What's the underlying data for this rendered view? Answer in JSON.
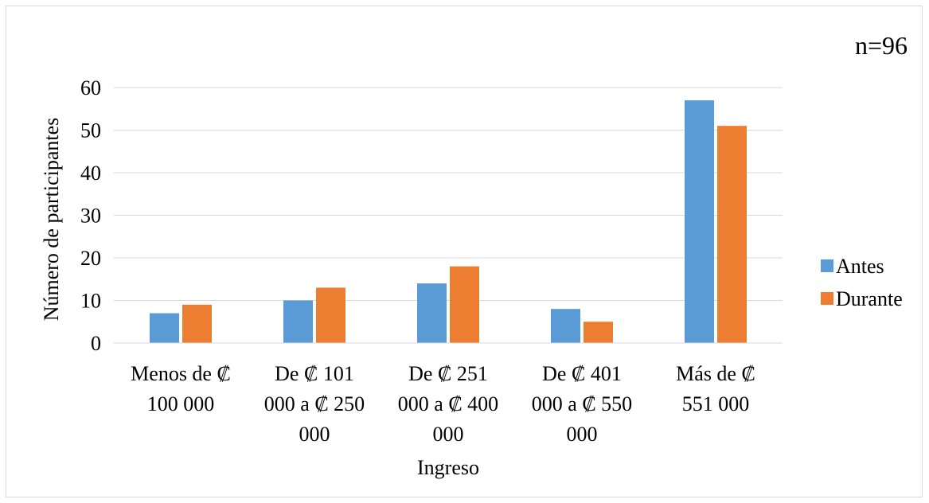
{
  "chart_data": {
    "type": "bar",
    "title": "",
    "annotation": "n=96",
    "xlabel": "Ingreso",
    "ylabel": "Número de participantes",
    "categories": [
      [
        "Menos de ₡",
        "100 000"
      ],
      [
        "De ₡ 101",
        "000 a ₡ 250",
        "000"
      ],
      [
        "De ₡ 251",
        "000 a ₡ 400",
        "000"
      ],
      [
        "De ₡ 401",
        "000 a ₡ 550",
        "000"
      ],
      [
        "Más de ₡",
        "551 000"
      ]
    ],
    "series": [
      {
        "name": "Antes",
        "color": "#5b9bd5",
        "values": [
          7,
          10,
          14,
          8,
          57
        ]
      },
      {
        "name": "Durante",
        "color": "#ed7d31",
        "values": [
          9,
          13,
          18,
          5,
          51
        ]
      }
    ],
    "ylim": [
      0,
      60
    ],
    "yticks": [
      0,
      10,
      20,
      30,
      40,
      50,
      60
    ],
    "grid": true,
    "gridColor": "#d9d9d9",
    "legend": "right"
  }
}
